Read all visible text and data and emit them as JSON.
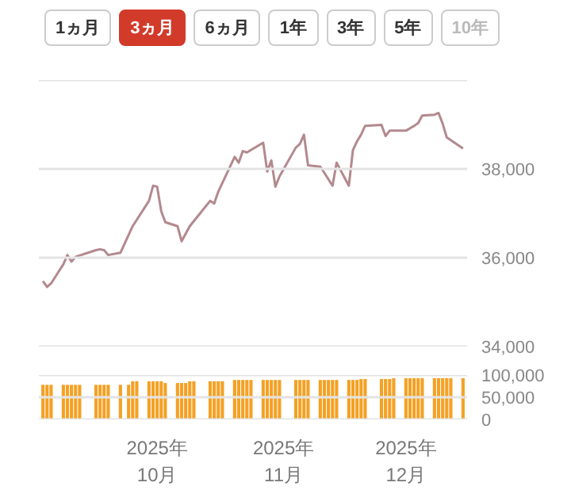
{
  "chart_data": [
    {
      "type": "line",
      "annotations": [
        "1ヵ月",
        "3ヵ月",
        "6ヵ月",
        "1年",
        "3年",
        "5年",
        "10年"
      ],
      "x": [
        "2025-09-03",
        "2025-09-04",
        "2025-09-05",
        "2025-09-08",
        "2025-09-09",
        "2025-09-10",
        "2025-09-11",
        "2025-09-16",
        "2025-09-17",
        "2025-09-18",
        "2025-09-19",
        "2025-09-22",
        "2025-09-25",
        "2025-09-29",
        "2025-09-30",
        "2025-10-01",
        "2025-10-02",
        "2025-10-03",
        "2025-10-06",
        "2025-10-07",
        "2025-10-09",
        "2025-10-14",
        "2025-10-15",
        "2025-10-16",
        "2025-10-20",
        "2025-10-21",
        "2025-10-22",
        "2025-10-23",
        "2025-10-27",
        "2025-10-28",
        "2025-10-29",
        "2025-10-30",
        "2025-10-31",
        "2025-11-04",
        "2025-11-05",
        "2025-11-06",
        "2025-11-07",
        "2025-11-10",
        "2025-11-11",
        "2025-11-13",
        "2025-11-14",
        "2025-11-17",
        "2025-11-18",
        "2025-11-19",
        "2025-11-20",
        "2025-11-21",
        "2025-11-25",
        "2025-11-26",
        "2025-11-27",
        "2025-12-01",
        "2025-12-03",
        "2025-12-04",
        "2025-12-05",
        "2025-12-08",
        "2025-12-09",
        "2025-12-10",
        "2025-12-11",
        "2025-12-15"
      ],
      "series": [
        {
          "color": "#b3898e",
          "values": [
            35470,
            35340,
            35420,
            35850,
            36060,
            35910,
            36020,
            36170,
            36190,
            36170,
            36060,
            36110,
            36710,
            37280,
            37620,
            37600,
            37050,
            36800,
            36710,
            36370,
            36710,
            37280,
            37220,
            37490,
            38270,
            38140,
            38400,
            38370,
            38590,
            37940,
            38190,
            37600,
            37830,
            38480,
            38560,
            38770,
            38080,
            38050,
            37910,
            37620,
            38140,
            37620,
            38420,
            38620,
            38770,
            38970,
            38990,
            38740,
            38860,
            38860,
            38970,
            39030,
            39200,
            39220,
            39260,
            39020,
            38710,
            38460
          ]
        }
      ],
      "xlim": [
        "2025-09-02",
        "2025-12-16"
      ],
      "ylim": [
        34000,
        40000
      ],
      "yticks": [
        {
          "value": 34000,
          "label": "34,000"
        },
        {
          "value": 36000,
          "label": "36,000"
        },
        {
          "value": 38000,
          "label": "38,000"
        },
        {
          "value": 40000,
          "label": null
        }
      ],
      "grid": "y",
      "tick_labels": "y"
    },
    {
      "type": "bar",
      "x": [
        "2025-09-03",
        "2025-09-04",
        "2025-09-05",
        "2025-09-08",
        "2025-09-09",
        "2025-09-10",
        "2025-09-11",
        "2025-09-12",
        "2025-09-16",
        "2025-09-17",
        "2025-09-18",
        "2025-09-19",
        "2025-09-22",
        "2025-09-24",
        "2025-09-25",
        "2025-09-26",
        "2025-09-29",
        "2025-09-30",
        "2025-10-01",
        "2025-10-02",
        "2025-10-03",
        "2025-10-06",
        "2025-10-07",
        "2025-10-08",
        "2025-10-09",
        "2025-10-10",
        "2025-10-14",
        "2025-10-15",
        "2025-10-16",
        "2025-10-17",
        "2025-10-20",
        "2025-10-21",
        "2025-10-22",
        "2025-10-23",
        "2025-10-24",
        "2025-10-27",
        "2025-10-28",
        "2025-10-29",
        "2025-10-30",
        "2025-10-31",
        "2025-11-04",
        "2025-11-05",
        "2025-11-06",
        "2025-11-07",
        "2025-11-10",
        "2025-11-11",
        "2025-11-12",
        "2025-11-13",
        "2025-11-14",
        "2025-11-17",
        "2025-11-18",
        "2025-11-19",
        "2025-11-20",
        "2025-11-21",
        "2025-11-25",
        "2025-11-26",
        "2025-11-27",
        "2025-11-28",
        "2025-12-01",
        "2025-12-02",
        "2025-12-03",
        "2025-12-04",
        "2025-12-05",
        "2025-12-08",
        "2025-12-09",
        "2025-12-10",
        "2025-12-11",
        "2025-12-12",
        "2025-12-15"
      ],
      "series": [
        {
          "color": "#f4a125",
          "values": [
            78000,
            78000,
            78000,
            78000,
            78000,
            78000,
            78000,
            78000,
            78000,
            78000,
            78000,
            78000,
            78000,
            78000,
            86000,
            86000,
            86000,
            86000,
            86000,
            86000,
            82000,
            82000,
            82000,
            82000,
            86000,
            86000,
            86000,
            86000,
            86000,
            86000,
            89000,
            89000,
            89000,
            89000,
            89000,
            89000,
            89000,
            89000,
            89000,
            89000,
            89000,
            89000,
            89000,
            89000,
            89000,
            89000,
            89000,
            89000,
            89000,
            89000,
            89000,
            89000,
            91000,
            91000,
            91000,
            91000,
            91000,
            93000,
            93000,
            93000,
            93000,
            93000,
            93000,
            93000,
            93000,
            93000,
            93000,
            93000,
            93000
          ]
        }
      ],
      "xlim": [
        "2025-09-02",
        "2025-12-16"
      ],
      "ylim": [
        0,
        100000
      ],
      "yticks": [
        {
          "value": 0,
          "label": "0"
        },
        {
          "value": 50000,
          "label": "50,000"
        },
        {
          "value": 100000,
          "label": "100,000"
        }
      ],
      "xticks": [
        {
          "value": "2025-10-01",
          "label": "2025年\n10月"
        },
        {
          "value": "2025-11-01",
          "label": "2025年\n11月"
        },
        {
          "value": "2025-12-01",
          "label": "2025年\n12月"
        }
      ],
      "grid": "y"
    }
  ]
}
